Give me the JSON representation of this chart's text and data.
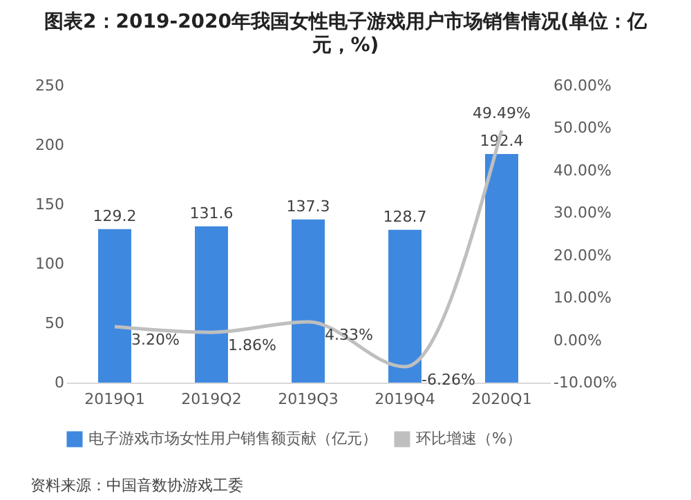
{
  "chart_data": {
    "type": "bar",
    "title": "图表2：2019-2020年我国女性电子游戏用户市场销售情况(单位：亿元，%)",
    "categories": [
      "2019Q1",
      "2019Q2",
      "2019Q3",
      "2019Q4",
      "2020Q1"
    ],
    "series": [
      {
        "name": "电子游戏市场女性用户销售额贡献（亿元）",
        "color": "#3f88e0",
        "values": [
          129.2,
          131.6,
          137.3,
          128.7,
          192.4
        ],
        "value_labels": [
          "129.2",
          "131.6",
          "137.3",
          "128.7",
          "192.4"
        ]
      },
      {
        "name": "环比增速（%）",
        "type": "line",
        "axis": "y2",
        "color": "#bfbfbf",
        "values": [
          3.2,
          1.86,
          4.33,
          -6.26,
          49.49
        ],
        "value_labels": [
          "3.20%",
          "1.86%",
          "4.33%",
          "-6.26%",
          "49.49%"
        ]
      }
    ],
    "ylim": [
      0,
      250
    ],
    "yticks": [
      0,
      50,
      100,
      150,
      200,
      250
    ],
    "y2lim": [
      -10,
      60
    ],
    "y2ticks": [
      {
        "value": -10,
        "label": "-10.00%"
      },
      {
        "value": 0,
        "label": "0.00%"
      },
      {
        "value": 10,
        "label": "10.00%"
      },
      {
        "value": 20,
        "label": "20.00%"
      },
      {
        "value": 30,
        "label": "30.00%"
      },
      {
        "value": 40,
        "label": "40.00%"
      },
      {
        "value": 50,
        "label": "50.00%"
      },
      {
        "value": 60,
        "label": "60.00%"
      }
    ],
    "legend": "bottom",
    "grid": false,
    "annotations": [
      "资料来源：中国音数协游戏工委"
    ]
  }
}
